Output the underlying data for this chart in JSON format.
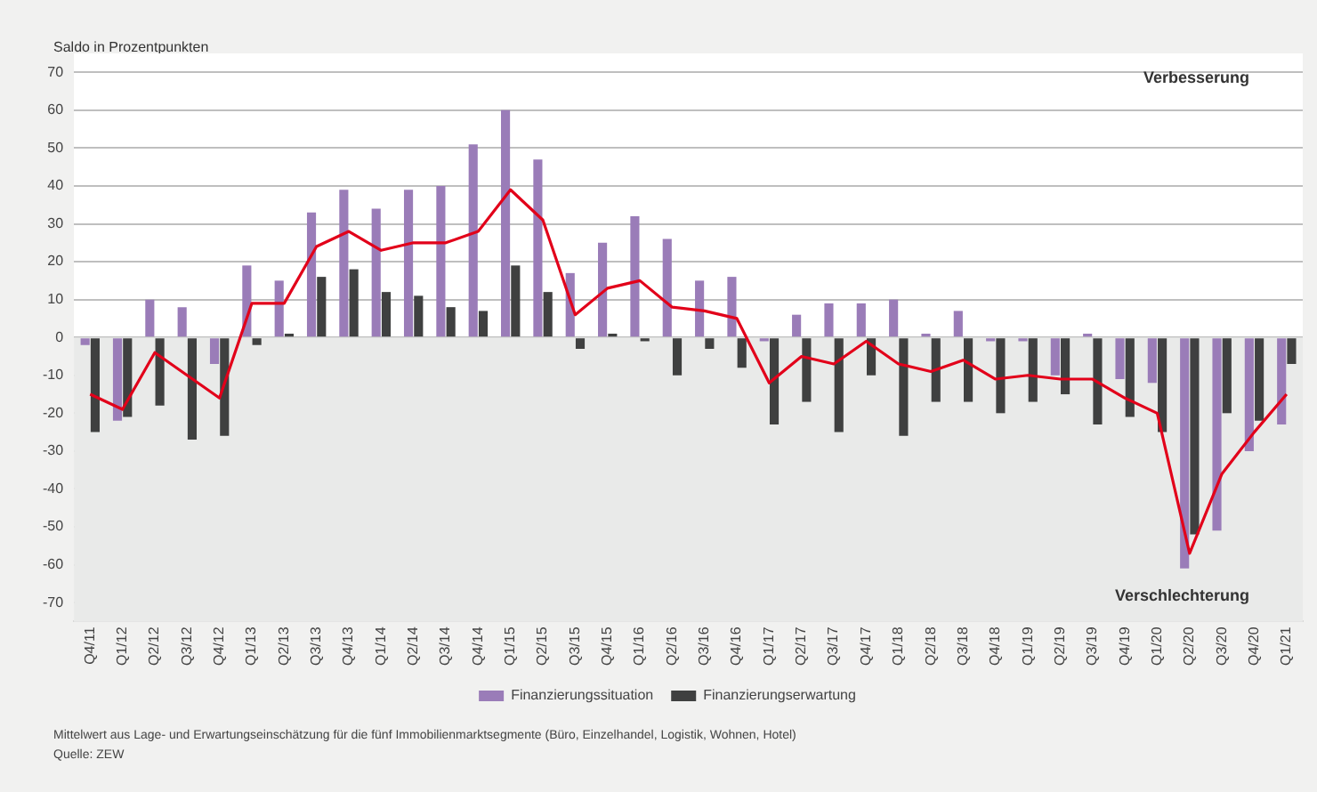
{
  "chart_data": {
    "type": "bar",
    "ylabel": "Saldo in Prozentpunkten",
    "categories": [
      "Q4/11",
      "Q1/12",
      "Q2/12",
      "Q3/12",
      "Q4/12",
      "Q1/13",
      "Q2/13",
      "Q3/13",
      "Q4/13",
      "Q1/14",
      "Q2/14",
      "Q3/14",
      "Q4/14",
      "Q1/15",
      "Q2/15",
      "Q3/15",
      "Q4/15",
      "Q1/16",
      "Q2/16",
      "Q3/16",
      "Q4/16",
      "Q1/17",
      "Q2/17",
      "Q3/17",
      "Q4/17",
      "Q1/18",
      "Q2/18",
      "Q3/18",
      "Q4/18",
      "Q1/19",
      "Q2/19",
      "Q3/19",
      "Q4/19",
      "Q1/20",
      "Q2/20",
      "Q3/20",
      "Q4/20",
      "Q1/21"
    ],
    "series": [
      {
        "name": "Finanzierungssituation",
        "color": "#9a7cb8",
        "values": [
          -2,
          -22,
          10,
          8,
          -7,
          19,
          15,
          33,
          39,
          34,
          39,
          40,
          51,
          60,
          47,
          17,
          25,
          32,
          26,
          15,
          16,
          -1,
          6,
          9,
          9,
          10,
          1,
          7,
          -1,
          -1,
          -10,
          1,
          -11,
          -12,
          -61,
          -51,
          -30,
          -23
        ]
      },
      {
        "name": "Finanzierungserwartung",
        "color": "#3f4040",
        "values": [
          -25,
          -21,
          -18,
          -27,
          -26,
          -2,
          1,
          16,
          18,
          12,
          11,
          8,
          7,
          19,
          12,
          -3,
          1,
          -1,
          -10,
          -3,
          -8,
          -23,
          -17,
          -25,
          -10,
          -26,
          -17,
          -17,
          -20,
          -17,
          -15,
          -23,
          -21,
          -25,
          -52,
          -20,
          -22,
          -7
        ]
      },
      {
        "type": "line",
        "color": "#e2001a",
        "values": [
          -15,
          -19,
          -4,
          -10,
          -16,
          9,
          9,
          24,
          28,
          23,
          25,
          25,
          28,
          39,
          31,
          6,
          13,
          15,
          8,
          7,
          5,
          -12,
          -5,
          -7,
          -1,
          -7,
          -9,
          -6,
          -11,
          -10,
          -11,
          -11,
          -16,
          -20,
          -57,
          -36,
          -25,
          -15
        ]
      }
    ],
    "ylim": [
      -75,
      75
    ],
    "yticks": [
      -70,
      -60,
      -50,
      -40,
      -30,
      -20,
      -10,
      0,
      10,
      20,
      30,
      40,
      50,
      60,
      70
    ],
    "grid": "y",
    "legend": "bottom",
    "marker": "none",
    "bands": [
      {
        "axis": "y",
        "from": -75,
        "to": 0,
        "color": "#e9eae9"
      }
    ],
    "annotations": [
      "Verbesserung",
      "Verschlechterung",
      "Mittelwert aus Lage- und Erwartungseinschätzung für die fünf Immobilienmarktsegmente (Büro, Einzelhandel, Logistik, Wohnen, Hotel)",
      "Quelle: ZEW"
    ]
  }
}
